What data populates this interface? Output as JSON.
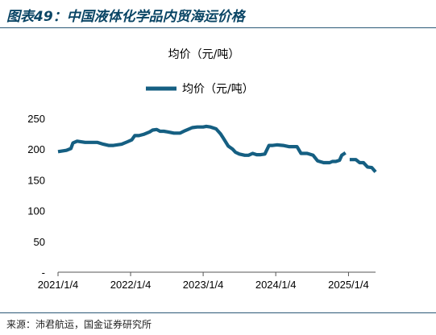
{
  "figure": {
    "title": "图表49：中国液体化学品内贸海运价格",
    "source": "来源：沛君航运，国金证券研究所"
  },
  "colors": {
    "series": "#155f82",
    "axis": "#555555",
    "rule": "#2b5876",
    "title": "#0a4565"
  },
  "chart_data": {
    "type": "line",
    "title": "均价（元/吨）",
    "legend": {
      "placement": "top",
      "entries": [
        "均价（元/吨）"
      ]
    },
    "xlabel": "",
    "ylabel": "",
    "ylim": [
      0,
      250
    ],
    "yticks": [
      0,
      50,
      100,
      150,
      200,
      250
    ],
    "ytick_labels": [
      "-",
      "50",
      "100",
      "150",
      "200",
      "250"
    ],
    "xticks": [
      "2021-01-04",
      "2022-01-04",
      "2023-01-04",
      "2024-01-04",
      "2025-01-04"
    ],
    "xtick_labels": [
      "2021/1/4",
      "2022/1/4",
      "2023/1/4",
      "2024/1/4",
      "2025/1/4"
    ],
    "xlim": [
      "2021-01-04",
      "2025-05-20"
    ],
    "grid": false,
    "series": [
      {
        "name": "均价（元/吨）",
        "x": [
          "2021-01-04",
          "2021-02-15",
          "2021-03-10",
          "2021-03-20",
          "2021-04-10",
          "2021-05-20",
          "2021-06-15",
          "2021-07-20",
          "2021-08-20",
          "2021-09-15",
          "2021-10-10",
          "2021-11-20",
          "2021-12-20",
          "2022-01-10",
          "2022-01-25",
          "2022-02-15",
          "2022-03-10",
          "2022-04-10",
          "2022-04-25",
          "2022-05-15",
          "2022-06-01",
          "2022-06-20",
          "2022-07-10",
          "2022-08-10",
          "2022-09-10",
          "2022-10-05",
          "2022-11-10",
          "2022-12-05",
          "2023-01-04",
          "2023-01-20",
          "2023-02-10",
          "2023-03-10",
          "2023-04-01",
          "2023-04-15",
          "2023-05-10",
          "2023-06-01",
          "2023-06-15",
          "2023-07-05",
          "2023-08-01",
          "2023-08-20",
          "2023-09-10",
          "2023-09-30",
          "2023-10-20",
          "2023-11-10",
          "2023-12-01",
          "2023-12-20",
          "2024-01-10",
          "2024-02-10",
          "2024-03-10",
          "2024-04-10",
          "2024-04-20",
          "2024-05-10",
          "2024-06-10",
          "2024-06-20",
          "2024-07-10",
          "2024-08-01",
          "2024-09-01",
          "2024-10-01",
          "2024-10-15",
          "2024-11-01",
          "2024-11-20",
          "2024-12-01",
          "2024-12-20"
        ],
        "y": [
          196,
          198,
          201,
          210,
          213,
          211,
          211,
          211,
          208,
          206,
          206,
          208,
          212,
          215,
          222,
          222,
          224,
          228,
          231,
          232,
          229,
          229,
          228,
          226,
          226,
          230,
          235,
          236,
          236,
          237,
          236,
          233,
          225,
          218,
          205,
          200,
          195,
          192,
          190,
          190,
          193,
          191,
          191,
          192,
          206,
          206,
          207,
          206,
          204,
          204,
          204,
          193,
          193,
          192,
          190,
          181,
          178,
          178,
          180,
          180,
          182,
          190,
          194
        ]
      },
      {
        "name": "",
        "x": [
          "2025-01-10",
          "2025-02-10",
          "2025-03-01",
          "2025-03-20",
          "2025-04-10",
          "2025-05-01",
          "2025-05-20"
        ],
        "y": [
          183,
          183,
          178,
          178,
          171,
          170,
          163
        ]
      }
    ]
  }
}
